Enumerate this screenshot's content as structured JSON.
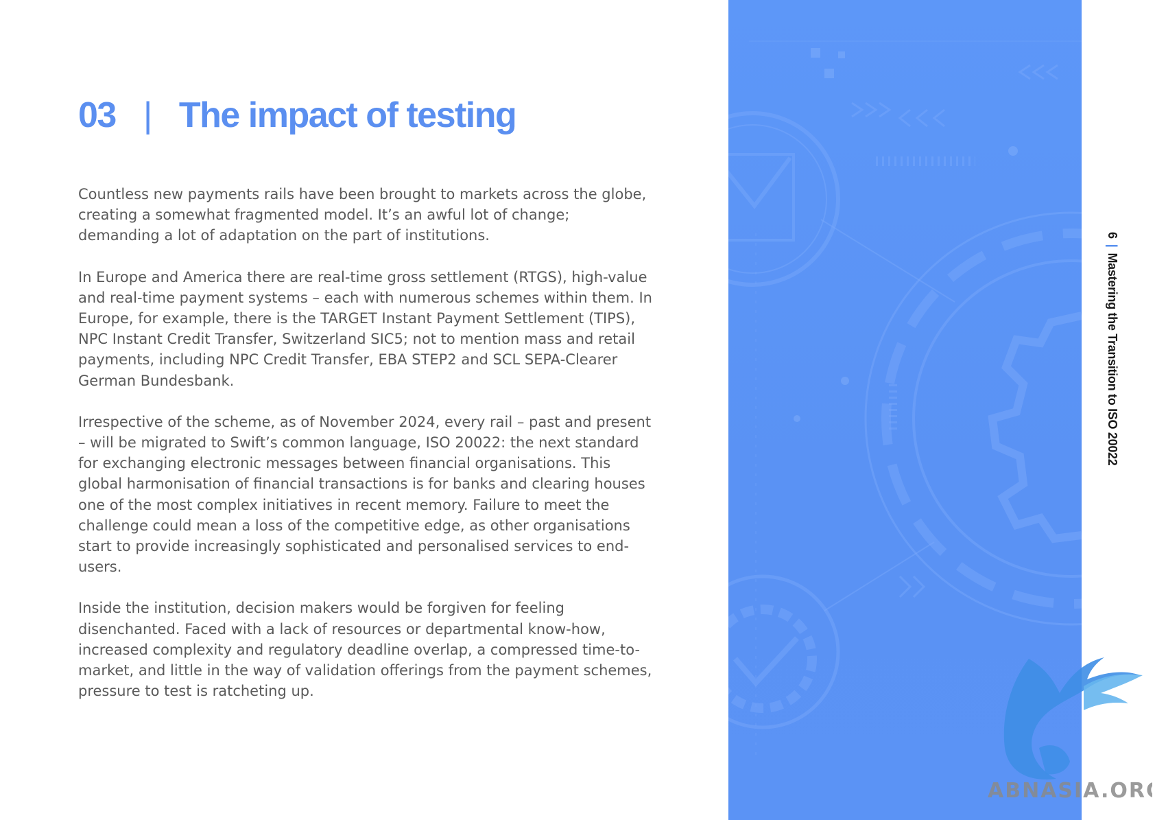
{
  "heading": {
    "number": "03",
    "separator": "|",
    "title": "The impact of testing"
  },
  "paragraphs": [
    "Countless new payments rails have been brought to markets across the globe, creating a somewhat fragmented model. It’s an awful lot of change; demanding a lot of adaptation on the part of institutions.",
    "In Europe and America there are real-time gross settlement (RTGS), high-value and real-time payment systems – each with numerous schemes within them. In Europe, for example, there is the TARGET Instant Payment Settlement (TIPS), NPC Instant Credit Transfer, Switzerland SIC5; not to mention mass and retail payments, including NPC Credit Transfer, EBA STEP2 and SCL SEPA-Clearer German Bundesbank.",
    "Irrespective of the scheme, as of November 2024, every rail – past and present – will be migrated to Swift’s common language, ISO 20022: the next standard for exchanging electronic messages between financial organisations. This global harmonisation of financial transactions is for banks and clearing houses one of the most complex initiatives in recent memory. Failure to meet the challenge could mean a loss of the competitive edge, as other organisations start to provide increasingly sophisticated and personalised services to end-users.",
    "Inside the institution, decision makers would be forgiven for feeling disenchanted. Faced with a lack of resources or departmental know-how, increased complexity and regulatory deadline overlap, a compressed time-to-market, and little in the way of validation offerings from the payment schemes, pressure to test is ratcheting up."
  ],
  "side_label": {
    "page_number": "6",
    "separator": "|",
    "document_title": "Mastering the Transition to ISO 20022"
  },
  "watermark": {
    "text": "ABNASIA.ORG"
  },
  "colors": {
    "accent": "#5b8ff0",
    "panel": "#5a92f4",
    "body_text": "#5a5a5a"
  }
}
